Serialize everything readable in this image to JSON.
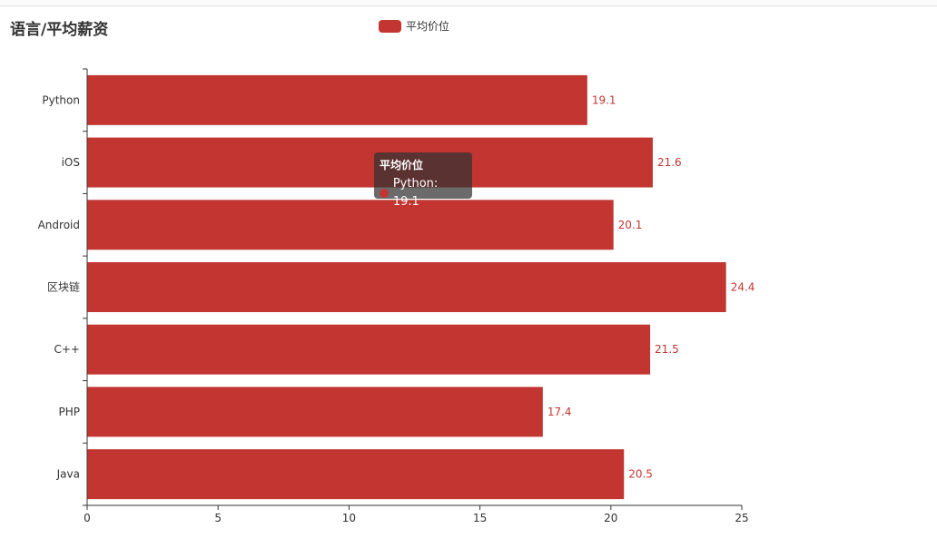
{
  "chart_data": {
    "type": "bar",
    "orientation": "horizontal",
    "title": "语言/平均薪资",
    "categories": [
      "Python",
      "iOS",
      "Android",
      "区块链",
      "C++",
      "PHP",
      "Java"
    ],
    "series": [
      {
        "name": "平均价位",
        "values": [
          19.1,
          21.6,
          20.1,
          24.4,
          21.5,
          17.4,
          20.5
        ],
        "color": "#c23531"
      }
    ],
    "xlim": [
      0,
      25
    ],
    "xticks": [
      0,
      5,
      10,
      15,
      20,
      25
    ],
    "grid": false,
    "legend_position": "top-center",
    "data_labels": "right"
  },
  "tooltip": {
    "title": "平均价位",
    "text": "Python: 19.1"
  },
  "colors": {
    "bar": "#c23531",
    "axis": "#333333",
    "tooltip_bg": "rgba(50,50,50,0.72)"
  }
}
